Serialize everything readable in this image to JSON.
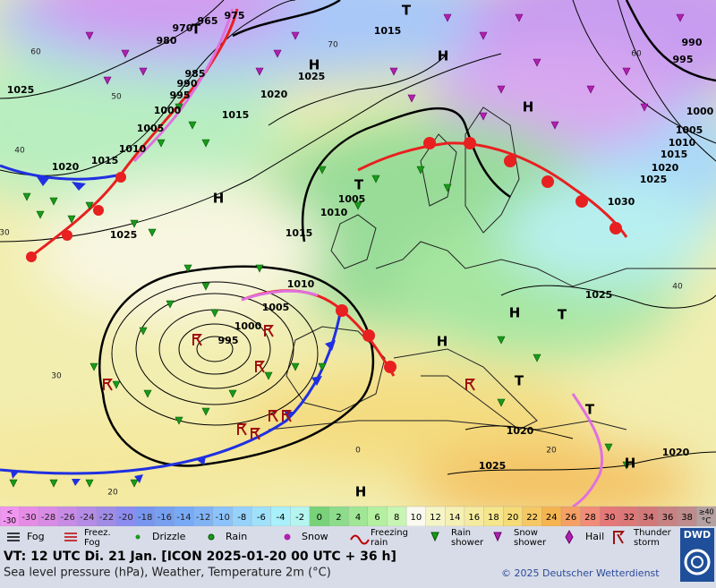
{
  "map": {
    "pressure_labels": [
      "1025",
      "1020",
      "1015",
      "1010",
      "1005",
      "1000",
      "995",
      "990",
      "985",
      "980",
      "970",
      "965",
      "975",
      "1015",
      "1025",
      "1020",
      "1015",
      "1025",
      "1015",
      "1005",
      "1010",
      "1010",
      "1005",
      "1000",
      "995",
      "990",
      "995",
      "1000",
      "1005",
      "1010",
      "1015",
      "1020",
      "1025",
      "1030",
      "1025",
      "1020",
      "1025",
      "1020"
    ],
    "temperature_labels": [
      "60",
      "50",
      "40",
      "30",
      "20",
      "70",
      "60",
      "40",
      "0",
      "20",
      "30"
    ],
    "centers": [
      "H",
      "T",
      "H",
      "H",
      "H",
      "T",
      "T",
      "H",
      "T",
      "H",
      "T",
      "T",
      "H",
      "H"
    ],
    "scale_low": {
      "top": "<",
      "bottom": "-30",
      "color": "#f096f0"
    },
    "scale": [
      {
        "label": "-30",
        "color": "#e68ce6"
      },
      {
        "label": "-28",
        "color": "#d98ce6"
      },
      {
        "label": "-26",
        "color": "#c88ce6"
      },
      {
        "label": "-24",
        "color": "#b48ce6"
      },
      {
        "label": "-22",
        "color": "#a08ce6"
      },
      {
        "label": "-20",
        "color": "#8c8cf0"
      },
      {
        "label": "-18",
        "color": "#7896f0"
      },
      {
        "label": "-16",
        "color": "#78a0f0"
      },
      {
        "label": "-14",
        "color": "#78aaf5"
      },
      {
        "label": "-12",
        "color": "#82b4f5"
      },
      {
        "label": "-10",
        "color": "#8cc3fa"
      },
      {
        "label": "-8",
        "color": "#96d2fa"
      },
      {
        "label": "-6",
        "color": "#a0e1fa"
      },
      {
        "label": "-4",
        "color": "#aaf0fa"
      },
      {
        "label": "-2",
        "color": "#b4f5f0"
      },
      {
        "label": "0",
        "color": "#78d278"
      },
      {
        "label": "2",
        "color": "#8cdc8c"
      },
      {
        "label": "4",
        "color": "#a0e696"
      },
      {
        "label": "6",
        "color": "#b4f0a0"
      },
      {
        "label": "8",
        "color": "#c8f5b4"
      },
      {
        "label": "10",
        "color": "#fafaf0"
      },
      {
        "label": "12",
        "color": "#f5f5c8"
      },
      {
        "label": "14",
        "color": "#f5f0b4"
      },
      {
        "label": "16",
        "color": "#f5eba0"
      },
      {
        "label": "18",
        "color": "#f5e68c"
      },
      {
        "label": "20",
        "color": "#f5dc78"
      },
      {
        "label": "22",
        "color": "#f5c864"
      },
      {
        "label": "24",
        "color": "#f5b450"
      },
      {
        "label": "26",
        "color": "#f5a064"
      },
      {
        "label": "28",
        "color": "#f08c78"
      },
      {
        "label": "30",
        "color": "#e67878"
      },
      {
        "label": "32",
        "color": "#dc7878"
      },
      {
        "label": "34",
        "color": "#d27878"
      },
      {
        "label": "36",
        "color": "#c88282"
      },
      {
        "label": "38",
        "color": "#be8c8c"
      }
    ],
    "scale_high": {
      "top": "≥40",
      "bottom": "°C",
      "color": "#b4a0a0"
    },
    "weather": [
      {
        "lines": [
          "Fog"
        ]
      },
      {
        "lines": [
          "Freez.",
          "Fog"
        ]
      },
      {
        "lines": [
          "Drizzle"
        ]
      },
      {
        "lines": [
          "Rain"
        ]
      },
      {
        "lines": [
          "Snow"
        ]
      },
      {
        "lines": [
          "Freezing",
          "rain"
        ]
      },
      {
        "lines": [
          "Rain",
          "shower"
        ]
      },
      {
        "lines": [
          "Snow",
          "shower"
        ]
      },
      {
        "lines": [
          "Hail"
        ]
      },
      {
        "lines": [
          "Thunder",
          "storm"
        ]
      }
    ]
  },
  "footer": {
    "valid_time": "VT: 12 UTC Di.  21 Jan. [ICON 2025-01-20  00 UTC + 36 h]",
    "description": "Sea level pressure (hPa), Weather, Temperature 2m (°C)",
    "copyright": "© 2025 Deutscher Wetterdienst",
    "logo": "DWD"
  }
}
